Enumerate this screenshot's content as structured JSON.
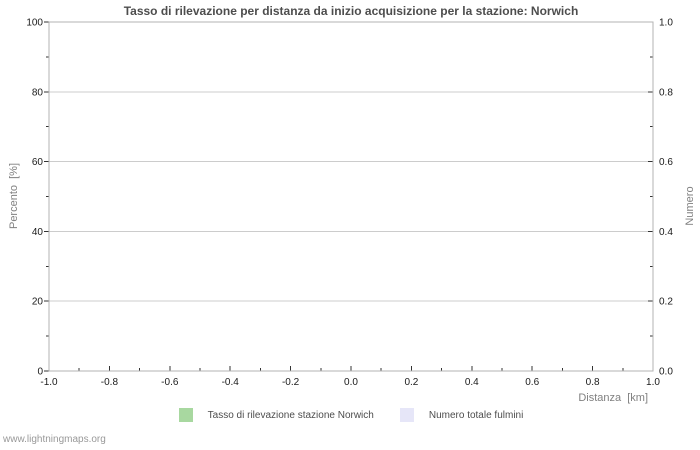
{
  "chart_data": {
    "type": "line",
    "title": "Tasso di rilevazione per distanza da inizio acquisizione per la stazione: Norwich",
    "xlabel": "Distanza  [km]",
    "ylabel_left": "Percento  [%]",
    "ylabel_right": "Numero",
    "xlim": [
      -1.0,
      1.0
    ],
    "ylim_left": [
      0,
      100
    ],
    "ylim_right": [
      0.0,
      1.0
    ],
    "x_tick_labels": [
      "-1.0",
      "-0.8",
      "-0.6",
      "-0.4",
      "-0.2",
      "0.0",
      "0.2",
      "0.4",
      "0.6",
      "0.8",
      "1.0"
    ],
    "y_left_tick_labels": [
      "0",
      "20",
      "40",
      "60",
      "80",
      "100"
    ],
    "y_right_tick_labels": [
      "0.0",
      "0.2",
      "0.4",
      "0.6",
      "0.8",
      "1.0"
    ],
    "grid": "horizontal-major-only",
    "minor_ticks": "one-midpoint-between-majors",
    "series": [],
    "legend_position": "bottom",
    "legend": [
      {
        "label": "Tasso di rilevazione stazione Norwich",
        "color": "#a8d8a0"
      },
      {
        "label": "Numero totale fulmini",
        "color": "#e6e6f8"
      }
    ]
  },
  "watermark": "www.lightningmaps.org",
  "colors": {
    "background": "#ffffff",
    "title": "#4d4d4d",
    "tick_label": "#1a1a1a",
    "axis_label": "#808080",
    "grid": "#cccccc",
    "frame": "#b3b3b3",
    "tick_mark": "#333333",
    "legend_text": "#4d4d4d",
    "watermark": "#999999"
  }
}
